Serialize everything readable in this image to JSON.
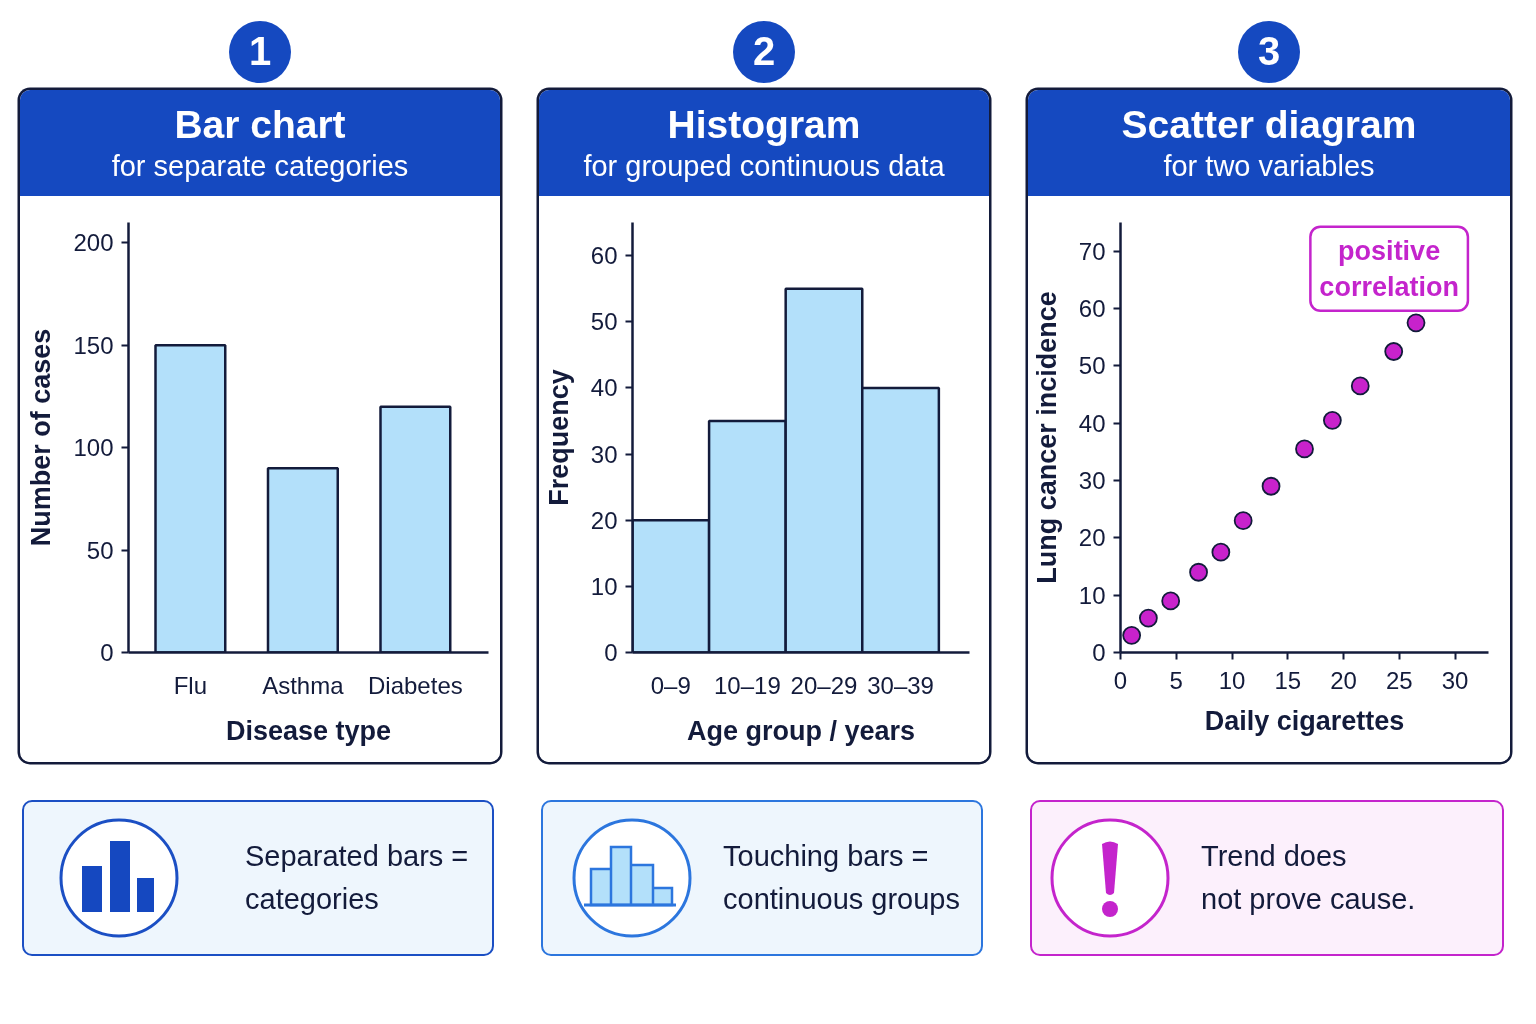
{
  "chart_data": [
    {
      "type": "bar",
      "title": "Bar chart",
      "subtitle": "for separate categories",
      "xlabel": "Disease type",
      "ylabel": "Number of cases",
      "categories": [
        "Flu",
        "Asthma",
        "Diabetes"
      ],
      "values": [
        150,
        90,
        120
      ],
      "color": "#b3e0fa",
      "ylim": [
        0,
        210
      ],
      "yticks": [
        0,
        50,
        100,
        150,
        200
      ],
      "annotations": [
        "1",
        "Separated bars =\ncategories"
      ]
    },
    {
      "type": "histogram",
      "title": "Histogram",
      "subtitle": "for grouped continuous data",
      "xlabel": "Age group / years",
      "ylabel": "Frequency",
      "categories": [
        "0–9",
        "10–19",
        "20–29",
        "30–39"
      ],
      "values": [
        20,
        35,
        55,
        40
      ],
      "color": "#b3e0fa",
      "ylim": [
        0,
        65
      ],
      "yticks": [
        0,
        10,
        20,
        30,
        40,
        50,
        60
      ],
      "annotations": [
        "2",
        "Touching bars =\ncontinuous groups"
      ]
    },
    {
      "type": "scatter",
      "title": "Scatter diagram",
      "subtitle": "for two variables",
      "xlabel": "Daily cigarettes",
      "ylabel": "Lung cancer incidence",
      "x": [
        1,
        2.5,
        4.5,
        7,
        9,
        11,
        13.5,
        16.5,
        19,
        21.5,
        24.5,
        26.5
      ],
      "values": [
        3,
        6,
        9,
        14,
        17.5,
        23,
        29,
        35.5,
        40.5,
        46.5,
        52.5,
        57.5
      ],
      "color": "#c822cc",
      "marker": "circle",
      "xlim": [
        0,
        33
      ],
      "xticks": [
        0,
        5,
        10,
        15,
        20,
        25,
        30
      ],
      "ylim": [
        0,
        75
      ],
      "yticks": [
        0,
        10,
        20,
        30,
        40,
        50,
        60,
        70
      ],
      "annotations": [
        "3",
        "positive correlation",
        "Trend does\nnot prove cause."
      ]
    }
  ]
}
